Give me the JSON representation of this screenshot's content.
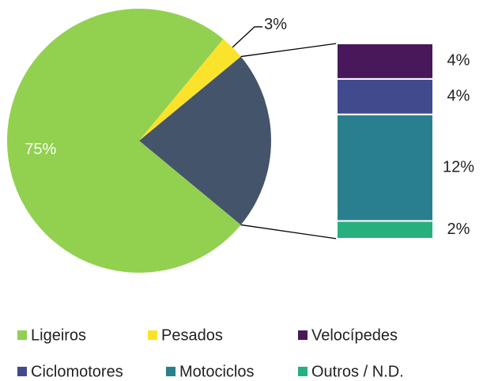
{
  "chart_data": {
    "type": "bar-of-pie",
    "categories": [
      "Ligeiros",
      "Pesados",
      "Velocípedes",
      "Ciclomotores",
      "Motociclos",
      "Outros / N.D."
    ],
    "values": [
      75,
      3,
      4,
      4,
      12,
      2
    ],
    "value_labels": [
      "75%",
      "3%",
      "4%",
      "4%",
      "12%",
      "2%"
    ],
    "colors": [
      "#92d050",
      "#fbe32b",
      "#48185a",
      "#414a8c",
      "#2a7f8e",
      "#27b07e"
    ],
    "bar_from": 2,
    "other_color": "#44546a"
  }
}
